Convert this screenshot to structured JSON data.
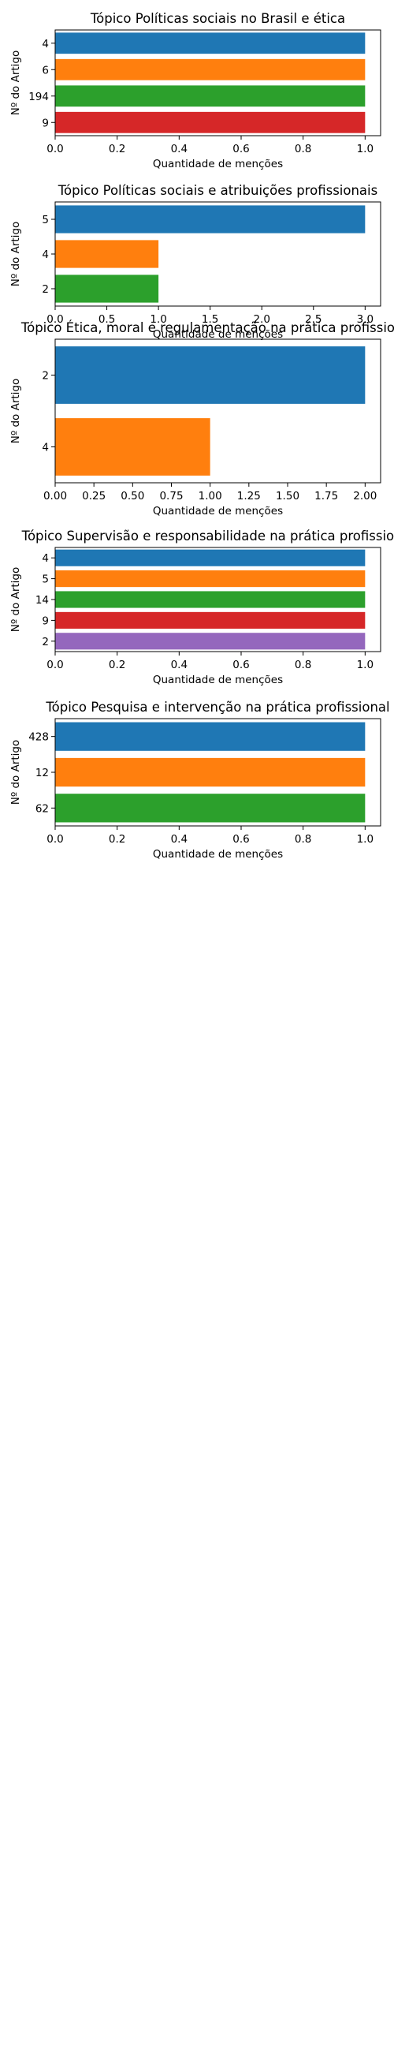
{
  "chart_data": [
    {
      "type": "bar",
      "orientation": "horizontal",
      "title": "Tópico Políticas sociais no Brasil e ética",
      "xlabel": "Quantidade de menções",
      "ylabel": "Nº do Artigo",
      "categories": [
        "4",
        "6",
        "194",
        "9"
      ],
      "values": [
        1,
        1,
        1,
        1
      ],
      "colors": [
        "#1f77b4",
        "#ff7f0e",
        "#2ca02c",
        "#d62728"
      ],
      "xlim": [
        0,
        1.05
      ],
      "xticks": [
        0.0,
        0.2,
        0.4,
        0.6,
        0.8,
        1.0
      ],
      "xtick_labels": [
        "0.0",
        "0.2",
        "0.4",
        "0.6",
        "0.8",
        "1.0"
      ],
      "grid": false,
      "legend": "none"
    },
    {
      "type": "bar",
      "orientation": "horizontal",
      "title": "Tópico Políticas sociais e atribuições profissionais",
      "xlabel": "Quantidade de menções",
      "ylabel": "Nº do Artigo",
      "categories": [
        "5",
        "4",
        "2"
      ],
      "values": [
        3,
        1,
        1
      ],
      "colors": [
        "#1f77b4",
        "#ff7f0e",
        "#2ca02c"
      ],
      "xlim": [
        0,
        3.15
      ],
      "xticks": [
        0.0,
        0.5,
        1.0,
        1.5,
        2.0,
        2.5,
        3.0
      ],
      "xtick_labels": [
        "0.0",
        "0.5",
        "1.0",
        "1.5",
        "2.0",
        "2.5",
        "3.0"
      ],
      "grid": false,
      "legend": "none"
    },
    {
      "type": "bar",
      "orientation": "horizontal",
      "title": "Tópico Ética, moral e regulamentação na prática profissional",
      "xlabel": "Quantidade de menções",
      "ylabel": "Nº do Artigo",
      "categories": [
        "2",
        "4"
      ],
      "values": [
        2,
        1
      ],
      "colors": [
        "#1f77b4",
        "#ff7f0e"
      ],
      "xlim": [
        0,
        2.1
      ],
      "xticks": [
        0.0,
        0.25,
        0.5,
        0.75,
        1.0,
        1.25,
        1.5,
        1.75,
        2.0
      ],
      "xtick_labels": [
        "0.00",
        "0.25",
        "0.50",
        "0.75",
        "1.00",
        "1.25",
        "1.50",
        "1.75",
        "2.00"
      ],
      "grid": false,
      "legend": "none"
    },
    {
      "type": "bar",
      "orientation": "horizontal",
      "title": "Tópico Supervisão e responsabilidade na prática profissional",
      "xlabel": "Quantidade de menções",
      "ylabel": "Nº do Artigo",
      "categories": [
        "4",
        "5",
        "14",
        "9",
        "2"
      ],
      "values": [
        1,
        1,
        1,
        1,
        1
      ],
      "colors": [
        "#1f77b4",
        "#ff7f0e",
        "#2ca02c",
        "#d62728",
        "#9467bd"
      ],
      "xlim": [
        0,
        1.05
      ],
      "xticks": [
        0.0,
        0.2,
        0.4,
        0.6,
        0.8,
        1.0
      ],
      "xtick_labels": [
        "0.0",
        "0.2",
        "0.4",
        "0.6",
        "0.8",
        "1.0"
      ],
      "grid": false,
      "legend": "none"
    },
    {
      "type": "bar",
      "orientation": "horizontal",
      "title": "Tópico Pesquisa e intervenção na prática profissional",
      "xlabel": "Quantidade de menções",
      "ylabel": "Nº do Artigo",
      "categories": [
        "428",
        "12",
        "62"
      ],
      "values": [
        1,
        1,
        1
      ],
      "colors": [
        "#1f77b4",
        "#ff7f0e",
        "#2ca02c"
      ],
      "xlim": [
        0,
        1.05
      ],
      "xticks": [
        0.0,
        0.2,
        0.4,
        0.6,
        0.8,
        1.0
      ],
      "xtick_labels": [
        "0.0",
        "0.2",
        "0.4",
        "0.6",
        "0.8",
        "1.0"
      ],
      "grid": false,
      "legend": "none"
    }
  ]
}
